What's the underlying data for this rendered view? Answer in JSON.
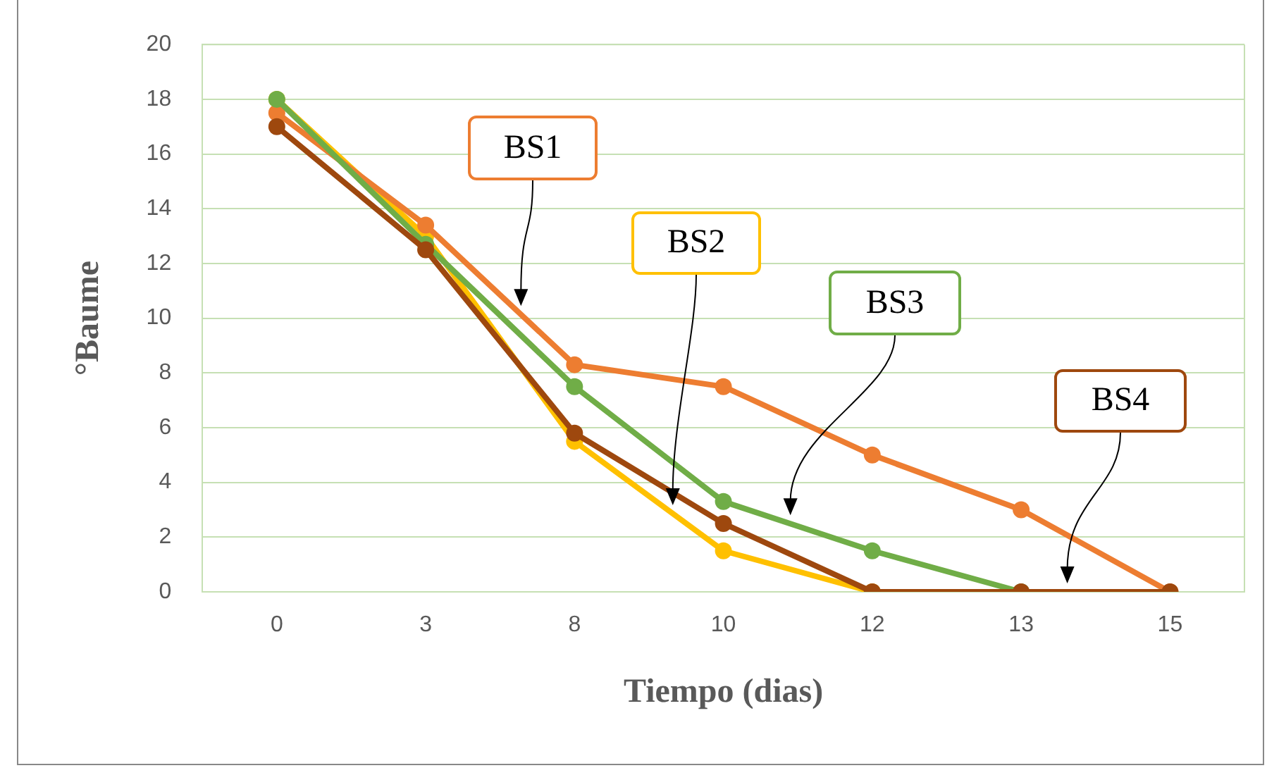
{
  "chart_data": {
    "type": "line",
    "xlabel": "Tiempo (dias)",
    "ylabel": "°Baume",
    "categories": [
      "0",
      "3",
      "8",
      "10",
      "12",
      "13",
      "15"
    ],
    "ylim": [
      0,
      20
    ],
    "yticks": [
      0,
      2,
      4,
      6,
      8,
      10,
      12,
      14,
      16,
      18,
      20
    ],
    "grid": "y",
    "legend": false,
    "marker": "circle",
    "line_style": "solid",
    "series": [
      {
        "name": "BS1",
        "color": "#ed7d31",
        "values": [
          17.5,
          13.4,
          8.3,
          7.5,
          5.0,
          3.0,
          0
        ]
      },
      {
        "name": "BS2",
        "color": "#ffc000",
        "values": [
          18,
          13,
          5.5,
          1.5,
          0,
          null,
          null
        ]
      },
      {
        "name": "BS3",
        "color": "#70ad47",
        "values": [
          18,
          12.7,
          7.5,
          3.3,
          1.5,
          0,
          null
        ]
      },
      {
        "name": "BS4",
        "color": "#9e480e",
        "values": [
          17,
          12.5,
          5.8,
          2.5,
          0,
          0,
          0
        ]
      }
    ]
  }
}
